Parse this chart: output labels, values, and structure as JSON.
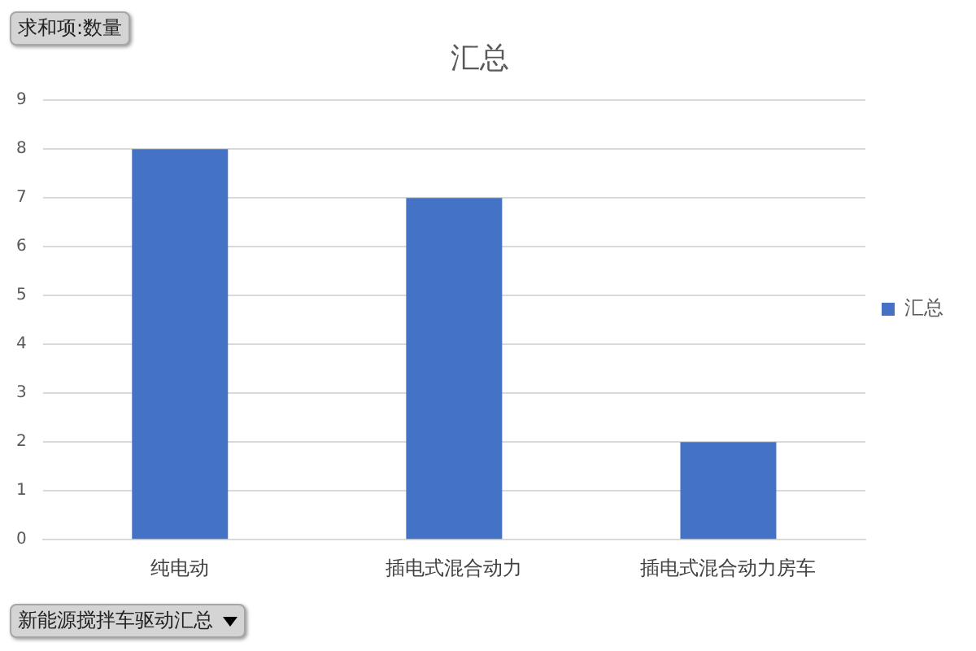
{
  "chart_data": {
    "type": "bar",
    "title": "汇总",
    "categories": [
      "纯电动",
      "插电式混合动力",
      "插电式混合动力房车"
    ],
    "series": [
      {
        "name": "汇总",
        "color": "#4472c4",
        "values": [
          8,
          7,
          2
        ]
      }
    ],
    "ylim": [
      0,
      9
    ],
    "yticks": [
      0,
      1,
      2,
      3,
      4,
      5,
      6,
      7,
      8,
      9
    ],
    "grid": "y",
    "legend": "right",
    "annotations": [
      "求和项:数量",
      "新能源搅拌车驱动汇总"
    ]
  }
}
